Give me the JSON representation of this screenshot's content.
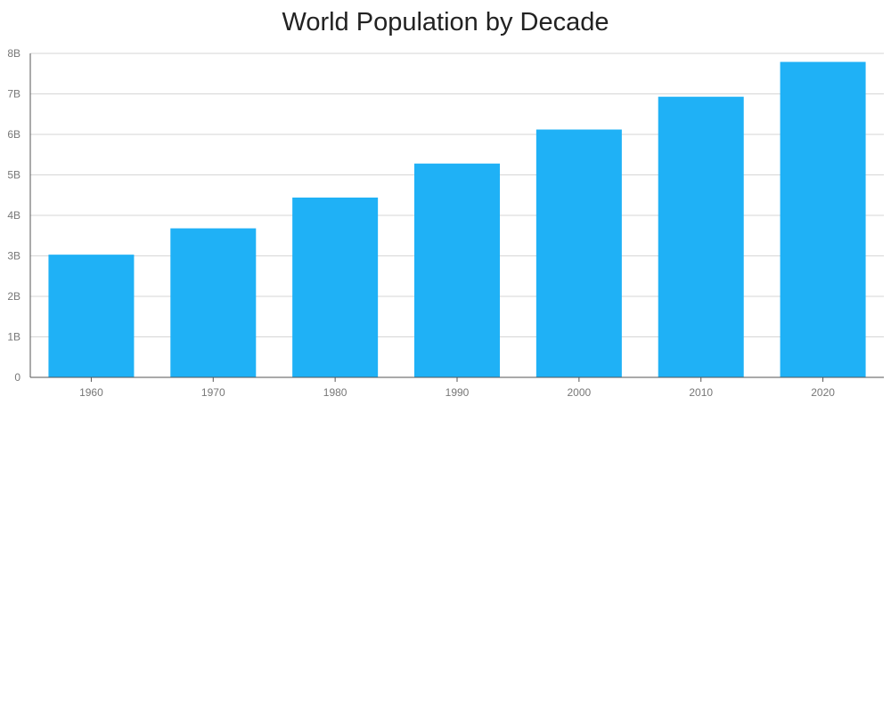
{
  "chart_data": {
    "type": "bar",
    "title": "World Population by Decade",
    "xlabel": "",
    "ylabel": "",
    "categories": [
      "1960",
      "1970",
      "1980",
      "1990",
      "2000",
      "2010",
      "2020"
    ],
    "values": [
      3.03,
      3.68,
      4.44,
      5.28,
      6.12,
      6.93,
      7.79
    ],
    "value_unit": "billions",
    "ylim": [
      0,
      8
    ],
    "yticks": [
      {
        "value": 0,
        "label": "0"
      },
      {
        "value": 1,
        "label": "1B"
      },
      {
        "value": 2,
        "label": "2B"
      },
      {
        "value": 3,
        "label": "3B"
      },
      {
        "value": 4,
        "label": "4B"
      },
      {
        "value": 5,
        "label": "5B"
      },
      {
        "value": 6,
        "label": "6B"
      },
      {
        "value": 7,
        "label": "7B"
      },
      {
        "value": 8,
        "label": "8B"
      }
    ],
    "grid": true,
    "legend": "none",
    "bar_color": "#1fb1f6",
    "grid_color": "#d6d6d6",
    "axis_color": "#555555"
  }
}
